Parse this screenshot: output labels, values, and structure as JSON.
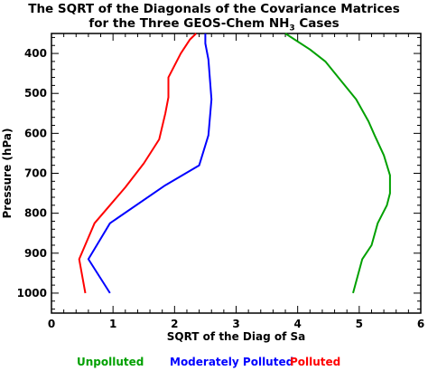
{
  "chart_data": {
    "type": "line",
    "title_line1": "The SQRT of the Diagonals of the Covariance Matrices",
    "title_line2": "for the Three GEOS-Chem NH3 Cases",
    "xlabel": "SQRT of the Diag of Sa",
    "ylabel": "Pressure (hPa)",
    "xlim": [
      0,
      6
    ],
    "ylim": [
      1050,
      350
    ],
    "x_ticks": [
      "0",
      "1",
      "2",
      "3",
      "4",
      "5",
      "6"
    ],
    "y_ticks": [
      "400",
      "500",
      "600",
      "700",
      "800",
      "900",
      "1000"
    ],
    "legend_position": "bottom",
    "series": [
      {
        "name": "Unpolluted",
        "color": "#00a000",
        "x": [
          4.9,
          5.05,
          5.2,
          5.3,
          5.45,
          5.5,
          5.5,
          5.4,
          5.25,
          5.15,
          4.95,
          4.45,
          4.2,
          3.8
        ],
        "y": [
          1000,
          915,
          880,
          825,
          780,
          750,
          705,
          655,
          605,
          570,
          515,
          420,
          390,
          350
        ]
      },
      {
        "name": "Moderately Polluted",
        "color": "#0000ff",
        "x": [
          0.95,
          0.6,
          0.95,
          1.85,
          2.4,
          2.55,
          2.6,
          2.55,
          2.5,
          2.5
        ],
        "y": [
          1000,
          915,
          825,
          730,
          680,
          605,
          515,
          415,
          375,
          350
        ]
      },
      {
        "name": "Polluted",
        "color": "#ff0000",
        "x": [
          0.55,
          0.45,
          0.7,
          1.2,
          1.5,
          1.75,
          1.85,
          1.9,
          1.9,
          2.1,
          2.25,
          2.35
        ],
        "y": [
          1000,
          915,
          825,
          735,
          675,
          615,
          550,
          510,
          460,
          400,
          365,
          350
        ]
      }
    ]
  }
}
